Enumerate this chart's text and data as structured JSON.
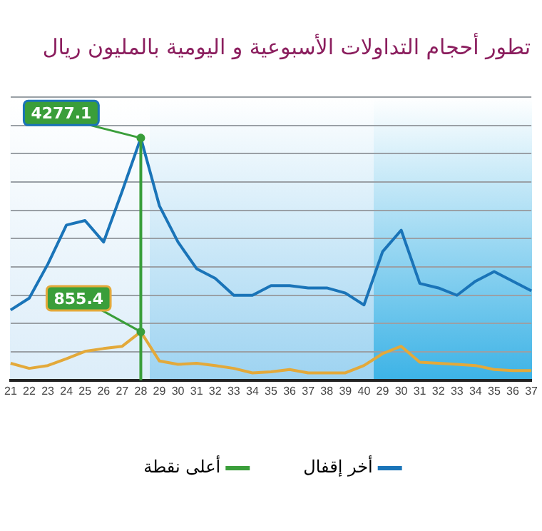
{
  "chart_data": {
    "type": "line",
    "title": "تطور أحجام التداولات الأسبوعية و اليومية بالمليون ريال",
    "grid": "y",
    "legend": "bottom",
    "marker": "none",
    "tick_labels": "x",
    "categories": [
      "21",
      "22",
      "23",
      "24",
      "25",
      "26",
      "27",
      "28",
      "29",
      "30",
      "31",
      "32",
      "33",
      "34",
      "35",
      "36",
      "37",
      "38",
      "39",
      "40",
      "29",
      "30",
      "31",
      "32",
      "33",
      "34",
      "35",
      "36",
      "37"
    ],
    "series": [
      {
        "name": "أخر إقفال",
        "color": "#1a74b8",
        "values": [
          1240,
          1450,
          2050,
          2740,
          2820,
          2440,
          3340,
          4277.1,
          3080,
          2440,
          1970,
          1800,
          1500,
          1500,
          1670,
          1670,
          1630,
          1630,
          1540,
          1330,
          2270,
          2650,
          1710,
          1630,
          1500,
          1750,
          1920,
          1750,
          1580
        ],
        "value_labels": [
          null,
          null,
          null,
          null,
          null,
          null,
          null,
          "4277.1",
          null,
          null,
          null,
          null,
          null,
          null,
          null,
          null,
          null,
          null,
          null,
          null,
          null,
          null,
          null,
          null,
          null,
          null,
          null,
          null,
          null
        ]
      },
      {
        "color": "#e3a93a",
        "values": [
          300,
          210,
          260,
          380,
          510,
          560,
          600,
          855.4,
          340,
          280,
          300,
          260,
          210,
          130,
          150,
          190,
          130,
          130,
          130,
          260,
          470,
          600,
          320,
          300,
          280,
          260,
          190,
          170,
          170
        ],
        "value_labels": [
          null,
          null,
          null,
          null,
          null,
          null,
          null,
          "855.4",
          null,
          null,
          null,
          null,
          null,
          null,
          null,
          null,
          null,
          null,
          null,
          null,
          null,
          null,
          null,
          null,
          null,
          null,
          null,
          null,
          null
        ]
      }
    ],
    "ref_lines": [
      {
        "axis": "x",
        "value": "28",
        "label": "أعلى نقطة",
        "color": "#3a9e3a"
      }
    ]
  }
}
